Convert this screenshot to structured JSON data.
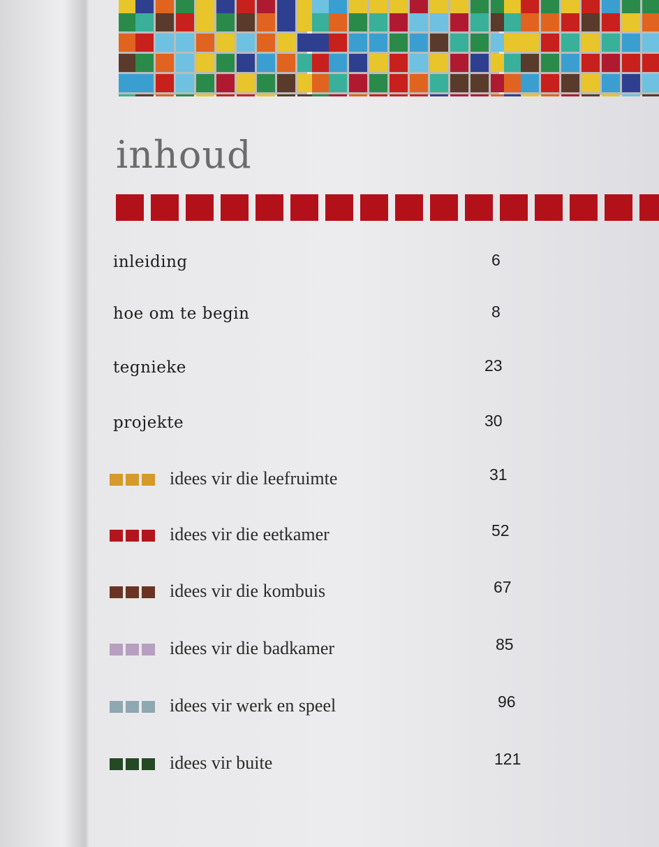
{
  "header": {
    "title": "inhoud"
  },
  "toc": {
    "sections": [
      {
        "label": "inleiding",
        "page": "6"
      },
      {
        "label": "hoe om te begin",
        "page": "8"
      },
      {
        "label": "tegnieke",
        "page": "23"
      },
      {
        "label": "projekte",
        "page": "30"
      }
    ],
    "subsections": [
      {
        "label": "idees vir die leefruimte",
        "page": "31",
        "color": "#d49a2a"
      },
      {
        "label": "idees vir die eetkamer",
        "page": "52",
        "color": "#b3161a"
      },
      {
        "label": "idees vir die kombuis",
        "page": "67",
        "color": "#6a3424"
      },
      {
        "label": "idees vir die badkamer",
        "page": "85",
        "color": "#b79fc0"
      },
      {
        "label": "idees vir werk en speel",
        "page": "96",
        "color": "#8fa7b0"
      },
      {
        "label": "idees vir buite",
        "page": "121",
        "color": "#234a24"
      }
    ]
  }
}
